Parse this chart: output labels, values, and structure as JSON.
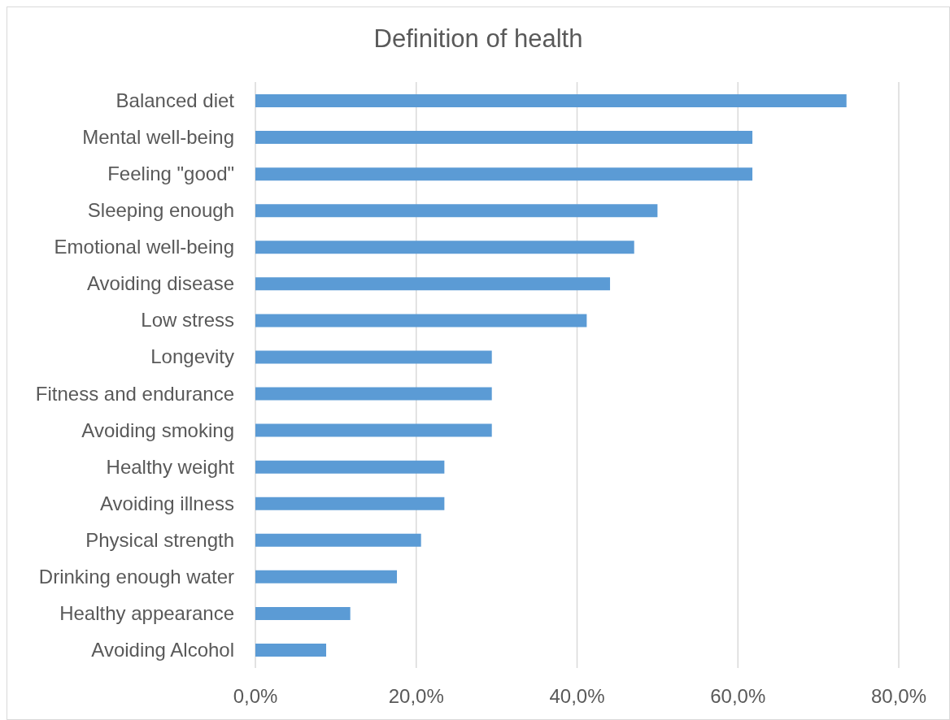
{
  "chart_data": {
    "type": "bar",
    "orientation": "horizontal",
    "title": "Definition of health",
    "categories": [
      "Balanced diet",
      "Mental well-being",
      "Feeling \"good\"",
      "Sleeping enough",
      "Emotional well-being",
      "Avoiding disease",
      "Low stress",
      "Longevity",
      "Fitness and endurance",
      "Avoiding smoking",
      "Healthy weight",
      "Avoiding illness",
      "Physical strength",
      "Drinking enough water",
      "Healthy appearance",
      "Avoiding Alcohol"
    ],
    "values": [
      73.5,
      61.8,
      61.8,
      50.0,
      47.1,
      44.1,
      41.2,
      29.4,
      29.4,
      29.4,
      23.5,
      23.5,
      20.6,
      17.6,
      11.8,
      8.8
    ],
    "color": "#5b9bd5",
    "xlim": [
      0,
      80
    ],
    "xticks": [
      {
        "value": 0,
        "label": "0,0%"
      },
      {
        "value": 20,
        "label": "20,0%"
      },
      {
        "value": 40,
        "label": "40,0%"
      },
      {
        "value": 60,
        "label": "60,0%"
      },
      {
        "value": 80,
        "label": "80,0%"
      }
    ],
    "grid": "x"
  }
}
